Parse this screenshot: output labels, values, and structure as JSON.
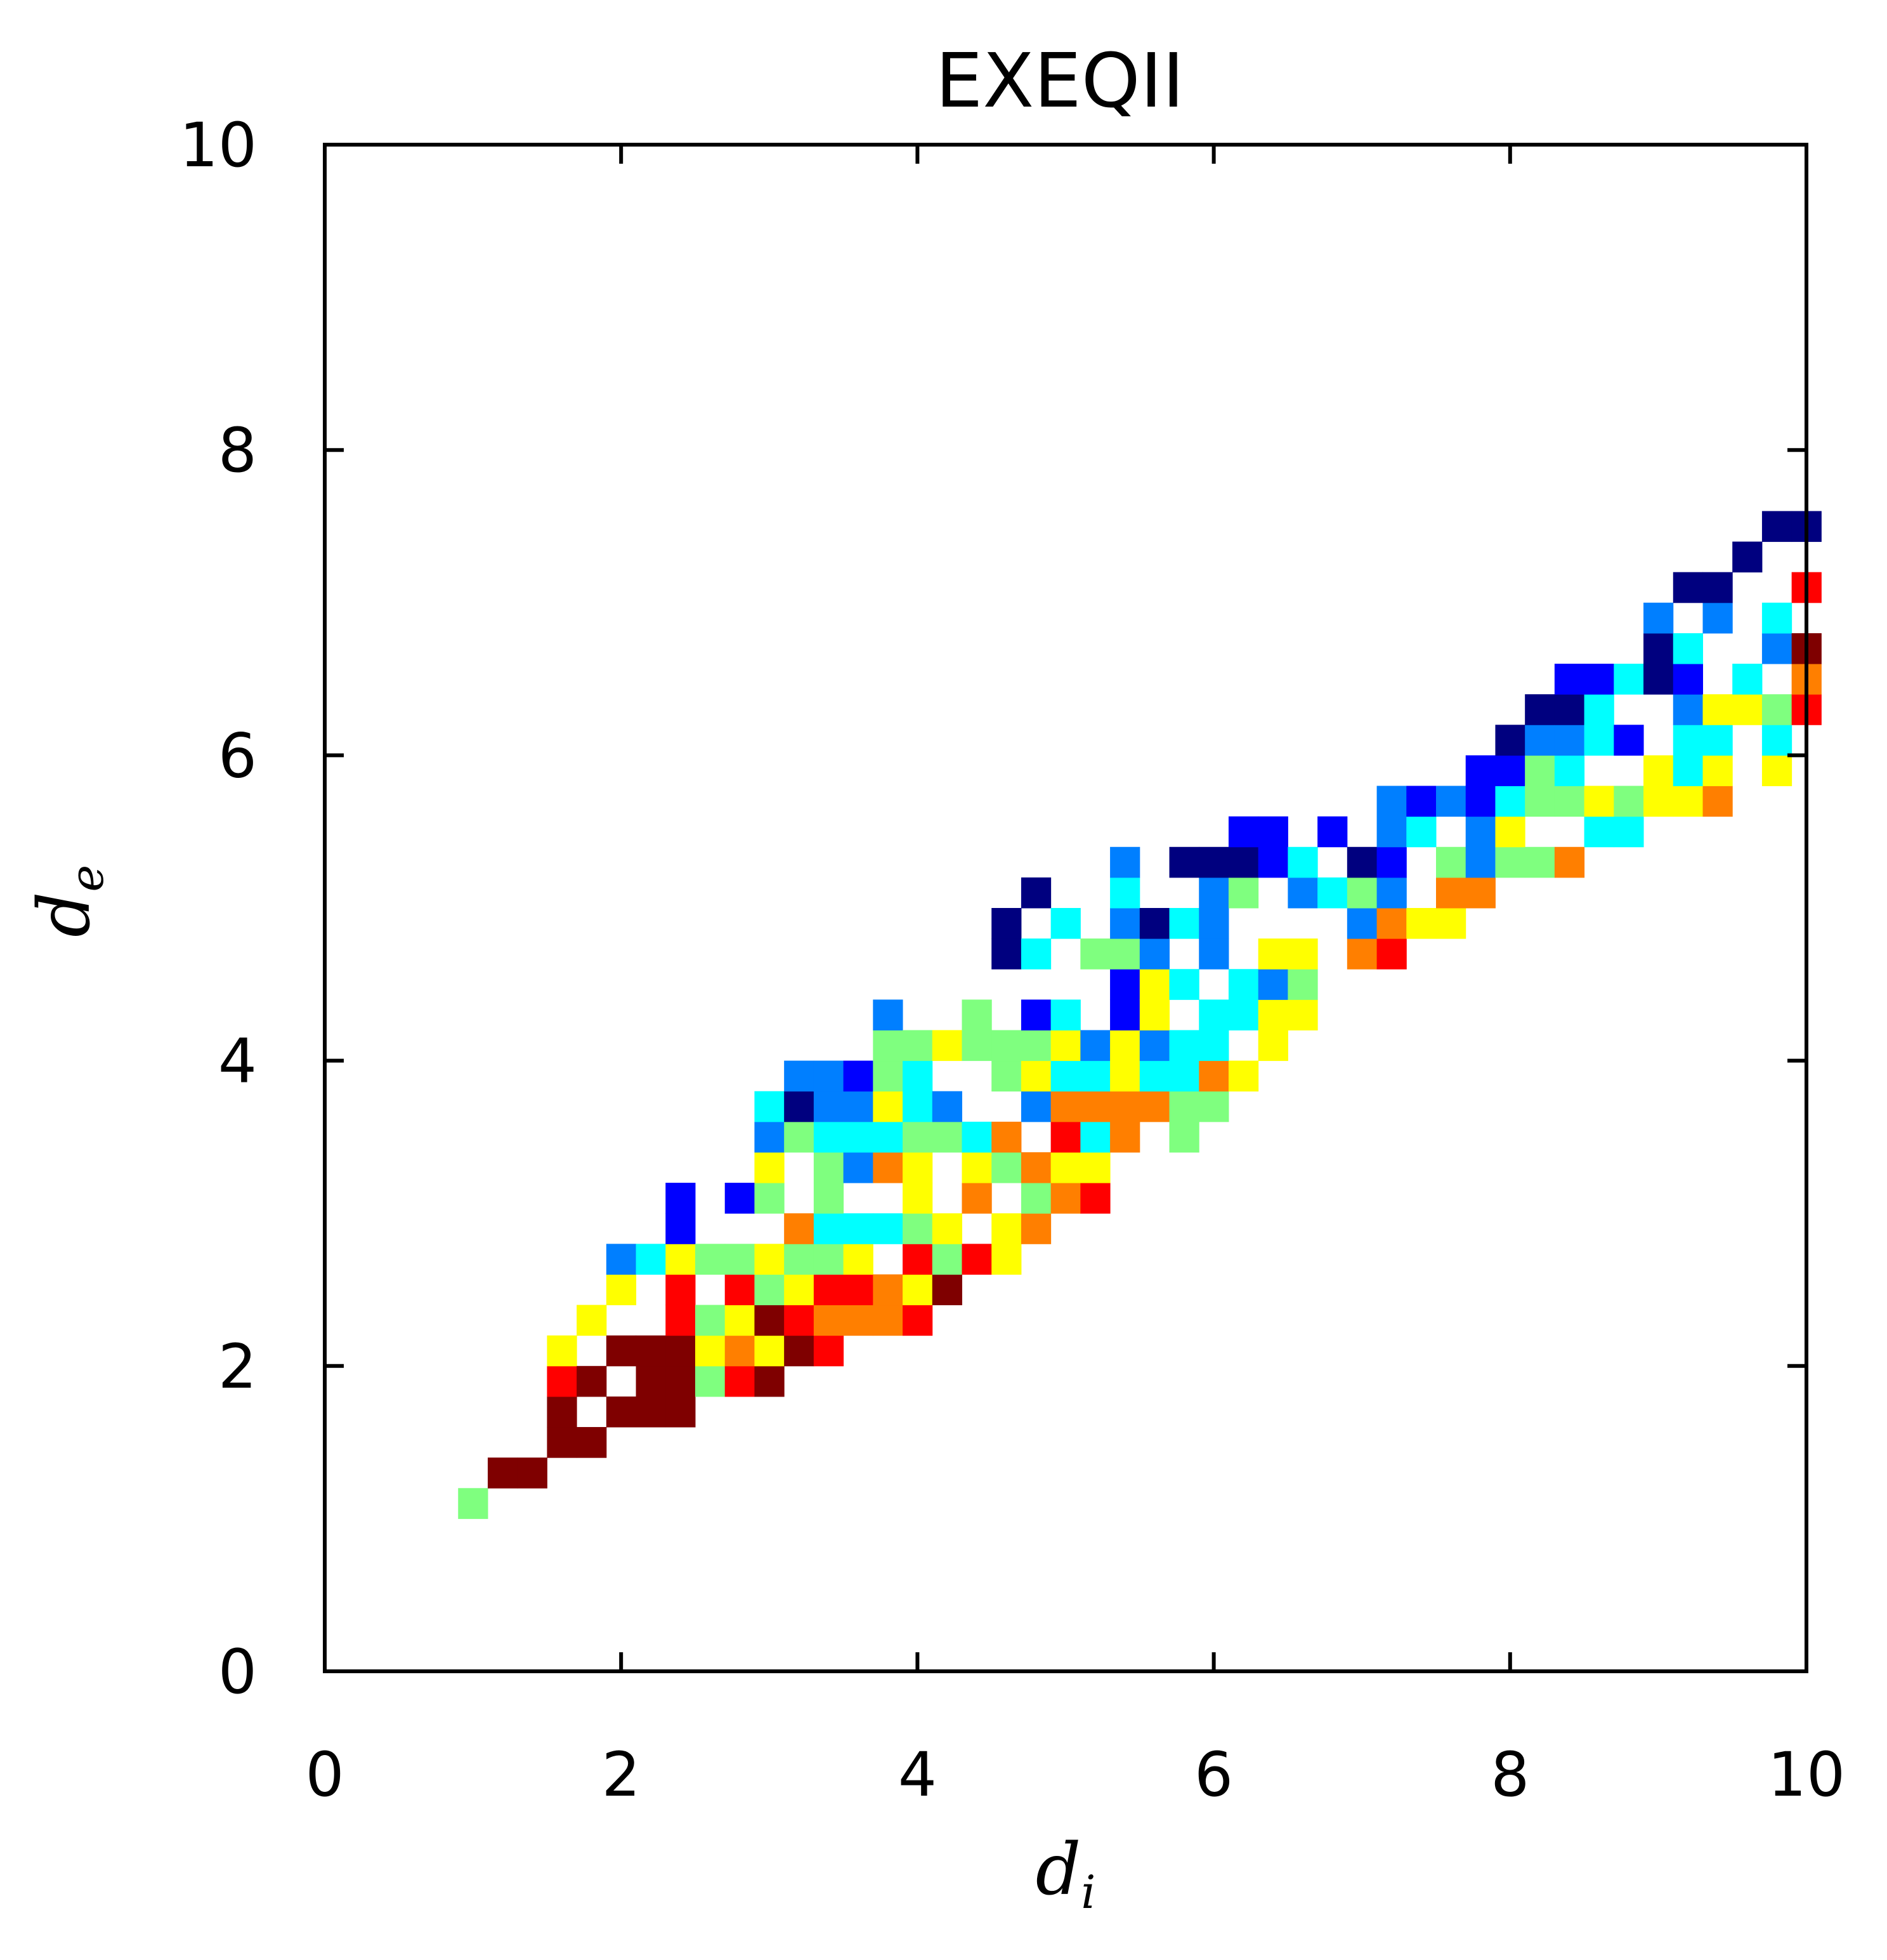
{
  "chart_data": {
    "type": "heatmap",
    "title": "EXEQII",
    "xlabel": {
      "main": "d",
      "sub": "i"
    },
    "ylabel": {
      "main": "d",
      "sub": "e"
    },
    "xlim": [
      0,
      10
    ],
    "ylim": [
      0,
      10
    ],
    "xticks": [
      "0",
      "2",
      "4",
      "6",
      "8",
      "10"
    ],
    "yticks": [
      "0",
      "2",
      "4",
      "6",
      "8",
      "10"
    ],
    "bin_size": 0.2,
    "grid": false,
    "colormap": [
      "#00007f",
      "#0000ff",
      "#007fff",
      "#00ffff",
      "#7fff7f",
      "#ffff00",
      "#ff7f00",
      "#ff0000",
      "#7f0000"
    ],
    "density_ridge": {
      "description_points_x": [
        0.8,
        1.2,
        2.0,
        3.0,
        4.0,
        5.0,
        6.0,
        7.0,
        8.0,
        9.0,
        10.0
      ],
      "lower_edge_y": [
        0.8,
        1.15,
        1.55,
        1.9,
        2.3,
        2.9,
        3.6,
        4.5,
        5.1,
        5.5,
        5.95
      ],
      "upper_edge_y": [
        0.85,
        1.55,
        2.8,
        3.9,
        4.7,
        5.25,
        5.55,
        5.65,
        6.2,
        7.0,
        7.85
      ],
      "peak_density_region": {
        "x": [
          1.0,
          2.5
        ],
        "y": [
          1.2,
          2.6
        ]
      },
      "secondary_peak_region": {
        "x": [
          9.8,
          10.0
        ],
        "y": [
          6.0,
          7.5
        ]
      }
    }
  }
}
